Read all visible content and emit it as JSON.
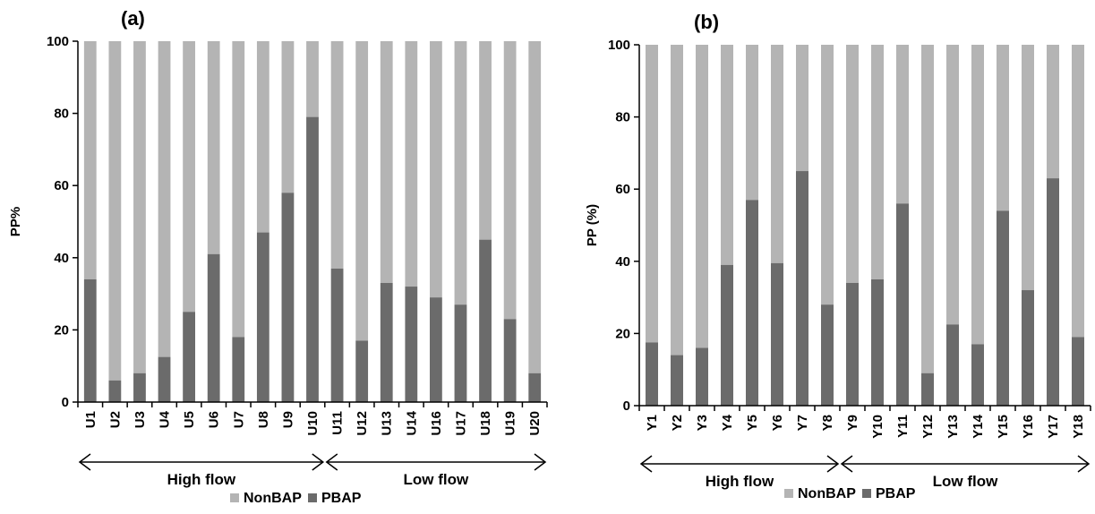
{
  "colors": {
    "pbap": "#6b6b6b",
    "nonbap": "#b4b4b4",
    "axis": "#000000"
  },
  "legend": [
    {
      "label": "NonBAP",
      "color": "#b4b4b4"
    },
    {
      "label": "PBAP",
      "color": "#6b6b6b"
    }
  ],
  "chart_data": [
    {
      "type": "bar",
      "stacked": true,
      "panel": "(a)",
      "ylabel": "PP%",
      "ylim": [
        0,
        100
      ],
      "yticks": [
        0,
        20,
        40,
        60,
        80,
        100
      ],
      "categories": [
        "U1",
        "U2",
        "U3",
        "U4",
        "U5",
        "U6",
        "U7",
        "U8",
        "U9",
        "U10",
        "U11",
        "U12",
        "U13",
        "U14",
        "U16",
        "U17",
        "U18",
        "U19",
        "U20"
      ],
      "series": [
        {
          "name": "PBAP",
          "values": [
            34,
            6,
            8,
            12.5,
            25,
            41,
            18,
            47,
            58,
            79,
            37,
            17,
            33,
            32,
            29,
            27,
            45,
            23,
            8
          ]
        },
        {
          "name": "NonBAP",
          "values": [
            66,
            94,
            92,
            87.5,
            75,
            59,
            82,
            53,
            42,
            21,
            63,
            83,
            67,
            68,
            71,
            73,
            55,
            77,
            92
          ]
        }
      ],
      "groups": [
        {
          "label": "High flow",
          "from": "U1",
          "to": "U10"
        },
        {
          "label": "Low flow",
          "from": "U11",
          "to": "U20"
        }
      ]
    },
    {
      "type": "bar",
      "stacked": true,
      "panel": "(b)",
      "ylabel": "PP (%)",
      "ylim": [
        0,
        100
      ],
      "yticks": [
        0,
        20,
        40,
        60,
        80,
        100
      ],
      "categories": [
        "Y1",
        "Y2",
        "Y3",
        "Y4",
        "Y5",
        "Y6",
        "Y7",
        "Y8",
        "Y9",
        "Y10",
        "Y11",
        "Y12",
        "Y13",
        "Y14",
        "Y15",
        "Y16",
        "Y17",
        "Y18"
      ],
      "series": [
        {
          "name": "PBAP",
          "values": [
            17.5,
            14,
            16,
            39,
            57,
            39.5,
            65,
            28,
            34,
            35,
            56,
            9,
            22.5,
            17,
            54,
            32,
            63,
            19
          ]
        },
        {
          "name": "NonBAP",
          "values": [
            82.5,
            86,
            84,
            61,
            43,
            60.5,
            35,
            72,
            66,
            65,
            44,
            91,
            77.5,
            83,
            46,
            68,
            37,
            81
          ]
        }
      ],
      "groups": [
        {
          "label": "High flow",
          "from": "Y1",
          "to": "Y8"
        },
        {
          "label": "Low flow",
          "from": "Y9",
          "to": "Y18"
        }
      ]
    }
  ]
}
